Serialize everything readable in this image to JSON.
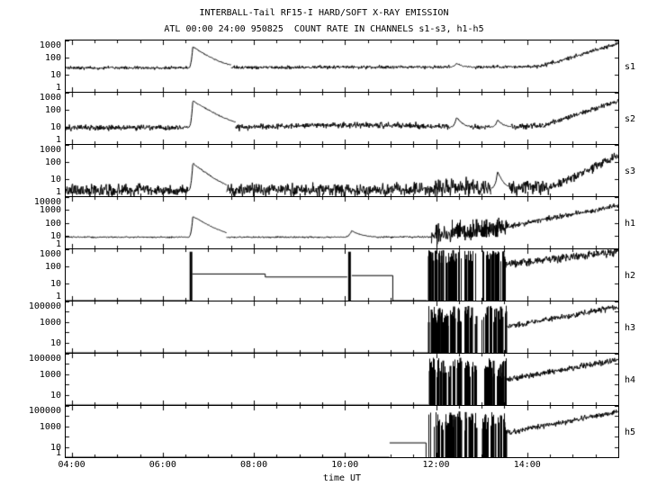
{
  "chart_data": {
    "type": "line",
    "title": "INTERBALL-Tail RF15-I HARD/SOFT X-RAY EMISSION",
    "subtitle": "ATL 00:00 24:00 950825  COUNT RATE IN CHANNELS s1-s3, h1-h5",
    "xlabel": "time UT",
    "line_color": "#000000",
    "background": "#ffffff",
    "xlim": [
      3.87,
      16.0
    ],
    "xminor_step": 0.5,
    "xticks": [
      {
        "v": 4,
        "label": "04:00"
      },
      {
        "v": 6,
        "label": "06:00"
      },
      {
        "v": 8,
        "label": "08:00"
      },
      {
        "v": 10,
        "label": "10:00"
      },
      {
        "v": 12,
        "label": "12:00"
      },
      {
        "v": 14,
        "label": "14:00"
      }
    ],
    "panels": [
      {
        "id": "s1",
        "label": "s1",
        "ylog": [
          0,
          3
        ],
        "yticks": [
          {
            "v": 1000,
            "label": "1000"
          },
          {
            "v": 100,
            "label": "100"
          },
          {
            "v": 10,
            "label": "10"
          },
          {
            "v": 1,
            "label": "1"
          }
        ],
        "segments": [
          {
            "type": "noisy",
            "t": [
              3.87,
              6.55
            ],
            "v": [
              25,
              25
            ],
            "jitter": 0.07
          },
          {
            "type": "flare",
            "t": [
              6.55,
              6.66,
              7.5
            ],
            "v": [
              25,
              430
            ]
          },
          {
            "type": "noisy",
            "t": [
              7.5,
              12.3
            ],
            "v": [
              26,
              28
            ],
            "jitter": 0.07
          },
          {
            "type": "flare",
            "t": [
              12.3,
              12.45,
              12.8
            ],
            "v": [
              28,
              48
            ]
          },
          {
            "type": "noisy",
            "t": [
              12.8,
              14.3
            ],
            "v": [
              28,
              30
            ],
            "jitter": 0.07
          },
          {
            "type": "noisy",
            "t": [
              14.3,
              16.0
            ],
            "v": [
              32,
              650
            ],
            "jitter": 0.08
          }
        ]
      },
      {
        "id": "s2",
        "label": "s2",
        "ylog": [
          0,
          3
        ],
        "yticks": [
          {
            "v": 1000,
            "label": "1000"
          },
          {
            "v": 100,
            "label": "100"
          },
          {
            "v": 10,
            "label": "10"
          },
          {
            "v": 1,
            "label": "1"
          }
        ],
        "segments": [
          {
            "type": "noisy",
            "t": [
              3.87,
              6.55
            ],
            "v": [
              9,
              9
            ],
            "jitter": 0.12
          },
          {
            "type": "flare",
            "t": [
              6.55,
              6.66,
              7.6
            ],
            "v": [
              9,
              330
            ]
          },
          {
            "type": "noisy",
            "t": [
              7.6,
              9.2
            ],
            "v": [
              9,
              12
            ],
            "jitter": 0.12
          },
          {
            "type": "noisy",
            "t": [
              9.2,
              11.6
            ],
            "v": [
              13,
              12
            ],
            "jitter": 0.12
          },
          {
            "type": "noisy",
            "t": [
              11.6,
              12.3
            ],
            "v": [
              10,
              10
            ],
            "jitter": 0.12
          },
          {
            "type": "flare",
            "t": [
              12.3,
              12.45,
              12.75
            ],
            "v": [
              10,
              38
            ]
          },
          {
            "type": "noisy",
            "t": [
              12.75,
              13.2
            ],
            "v": [
              10,
              10
            ],
            "jitter": 0.12
          },
          {
            "type": "flare",
            "t": [
              13.2,
              13.35,
              13.65
            ],
            "v": [
              10,
              26
            ]
          },
          {
            "type": "noisy",
            "t": [
              13.65,
              14.35
            ],
            "v": [
              10,
              12
            ],
            "jitter": 0.12
          },
          {
            "type": "noisy",
            "t": [
              14.35,
              16.0
            ],
            "v": [
              12,
              330
            ],
            "jitter": 0.1
          }
        ]
      },
      {
        "id": "s3",
        "label": "s3",
        "ylog": [
          0,
          3
        ],
        "yticks": [
          {
            "v": 1000,
            "label": "1000"
          },
          {
            "v": 100,
            "label": "100"
          },
          {
            "v": 10,
            "label": "10"
          },
          {
            "v": 1,
            "label": "1"
          }
        ],
        "segments": [
          {
            "type": "noisy",
            "t": [
              3.87,
              6.55
            ],
            "v": [
              2.2,
              2.2
            ],
            "jitter": 0.26
          },
          {
            "type": "flare",
            "t": [
              6.55,
              6.66,
              7.4
            ],
            "v": [
              2.2,
              85
            ]
          },
          {
            "type": "noisy",
            "t": [
              7.4,
              11.9
            ],
            "v": [
              2.2,
              2.5
            ],
            "jitter": 0.26
          },
          {
            "type": "noisy",
            "t": [
              11.9,
              13.2
            ],
            "v": [
              3,
              3.5
            ],
            "jitter": 0.38
          },
          {
            "type": "flare",
            "t": [
              13.2,
              13.35,
              13.6
            ],
            "v": [
              3,
              26
            ]
          },
          {
            "type": "noisy",
            "t": [
              13.6,
              14.6
            ],
            "v": [
              3,
              4
            ],
            "jitter": 0.3
          },
          {
            "type": "noisy",
            "t": [
              14.6,
              16.0
            ],
            "v": [
              4.5,
              230
            ],
            "jitter": 0.2
          }
        ]
      },
      {
        "id": "h1",
        "label": "h1",
        "ylog": [
          0,
          4
        ],
        "yticks": [
          {
            "v": 10000,
            "label": "10000"
          },
          {
            "v": 1000,
            "label": "1000"
          },
          {
            "v": 100,
            "label": "100"
          },
          {
            "v": 10,
            "label": "10"
          },
          {
            "v": 1,
            "label": "1"
          }
        ],
        "segments": [
          {
            "type": "noisy",
            "t": [
              3.87,
              6.55
            ],
            "v": [
              7.5,
              7.5
            ],
            "jitter": 0.04
          },
          {
            "type": "flare",
            "t": [
              6.55,
              6.66,
              7.4
            ],
            "v": [
              7.5,
              310
            ]
          },
          {
            "type": "noisy",
            "t": [
              7.4,
              9.95
            ],
            "v": [
              7.5,
              7.5
            ],
            "jitter": 0.04
          },
          {
            "type": "flare",
            "t": [
              9.95,
              10.15,
              10.7
            ],
            "v": [
              7.5,
              23
            ]
          },
          {
            "type": "noisy",
            "t": [
              10.7,
              11.9
            ],
            "v": [
              7.5,
              8
            ],
            "jitter": 0.05
          },
          {
            "type": "noisy",
            "t": [
              11.9,
              13.6
            ],
            "v": [
              12,
              45
            ],
            "jitter": 0.5
          },
          {
            "type": "bursts",
            "t": [
              12.3,
              13.4
            ],
            "base": 8,
            "range": [
              30,
              200
            ],
            "n": 22
          },
          {
            "type": "noisy",
            "t": [
              13.6,
              16.0
            ],
            "v": [
              55,
              2200
            ],
            "jitter": 0.15
          }
        ]
      },
      {
        "id": "h2",
        "label": "h2",
        "ylog": [
          0,
          3
        ],
        "yticks": [
          {
            "v": 1000,
            "label": "1000"
          },
          {
            "v": 100,
            "label": "100"
          },
          {
            "v": 10,
            "label": "10"
          },
          {
            "v": 1,
            "label": "1"
          }
        ],
        "segments": [
          {
            "type": "line",
            "points": [
              [
                3.87,
                1
              ],
              [
                6.58,
                1
              ]
            ]
          },
          {
            "type": "spike",
            "t": 6.62,
            "v": 720,
            "w": 3
          },
          {
            "type": "line",
            "points": [
              [
                6.65,
                36
              ],
              [
                8.25,
                36
              ],
              [
                8.25,
                24
              ],
              [
                10.05,
                24
              ]
            ]
          },
          {
            "type": "spike",
            "t": 10.1,
            "v": 720,
            "w": 3
          },
          {
            "type": "line",
            "points": [
              [
                10.15,
                29
              ],
              [
                11.05,
                29
              ],
              [
                11.05,
                1
              ],
              [
                11.8,
                1
              ]
            ]
          },
          {
            "type": "bursts",
            "t": [
              11.8,
              12.55
            ],
            "base": 1,
            "range": [
              150,
              900
            ],
            "n": 70
          },
          {
            "type": "bursts",
            "t": [
              12.62,
              12.88
            ],
            "base": 1,
            "range": [
              150,
              900
            ],
            "n": 22
          },
          {
            "type": "bursts",
            "t": [
              13.0,
              13.52
            ],
            "base": 1,
            "range": [
              150,
              900
            ],
            "n": 45
          },
          {
            "type": "noisy",
            "t": [
              13.52,
              16.0
            ],
            "v": [
              130,
              700
            ],
            "jitter": 0.18
          }
        ]
      },
      {
        "id": "h3",
        "label": "h3",
        "ylog": [
          0,
          5
        ],
        "yticks": [
          {
            "v": 100000,
            "label": "100000"
          },
          {
            "v": 1000,
            "label": "1000"
          },
          {
            "v": 10,
            "label": "10"
          }
        ],
        "segments": [
          {
            "type": "line",
            "points": [
              [
                3.87,
                1
              ],
              [
                11.83,
                1
              ]
            ]
          },
          {
            "type": "bursts",
            "t": [
              11.83,
              12.55
            ],
            "base": 1,
            "range": [
              400,
              40000
            ],
            "n": 60
          },
          {
            "type": "bursts",
            "t": [
              12.62,
              12.88
            ],
            "base": 1,
            "range": [
              400,
              40000
            ],
            "n": 20
          },
          {
            "type": "bursts",
            "t": [
              13.0,
              13.55
            ],
            "base": 1,
            "range": [
              400,
              40000
            ],
            "n": 42
          },
          {
            "type": "noisy",
            "t": [
              13.55,
              16.0
            ],
            "v": [
              350,
              30000
            ],
            "jitter": 0.2
          }
        ]
      },
      {
        "id": "h4",
        "label": "h4",
        "ylog": [
          0,
          5
        ],
        "yticks": [
          {
            "v": 100000,
            "label": "100000"
          },
          {
            "v": 1000,
            "label": "1000"
          },
          {
            "v": 10,
            "label": "10"
          }
        ],
        "segments": [
          {
            "type": "line",
            "points": [
              [
                3.87,
                1
              ],
              [
                11.83,
                1
              ]
            ]
          },
          {
            "type": "bursts",
            "t": [
              11.83,
              12.55
            ],
            "base": 1,
            "range": [
              400,
              40000
            ],
            "n": 58
          },
          {
            "type": "bursts",
            "t": [
              12.62,
              12.88
            ],
            "base": 1,
            "range": [
              400,
              40000
            ],
            "n": 20
          },
          {
            "type": "bursts",
            "t": [
              13.0,
              13.55
            ],
            "base": 1,
            "range": [
              400,
              40000
            ],
            "n": 40
          },
          {
            "type": "noisy",
            "t": [
              13.55,
              16.0
            ],
            "v": [
              300,
              26000
            ],
            "jitter": 0.2
          }
        ]
      },
      {
        "id": "h5",
        "label": "h5",
        "ylog": [
          0,
          5
        ],
        "yticks": [
          {
            "v": 100000,
            "label": "100000"
          },
          {
            "v": 1000,
            "label": "1000"
          },
          {
            "v": 10,
            "label": "10"
          },
          {
            "v": 1,
            "label": "1"
          }
        ],
        "segments": [
          {
            "type": "line",
            "points": [
              [
                3.87,
                1
              ],
              [
                10.98,
                1
              ]
            ]
          },
          {
            "type": "line",
            "points": [
              [
                10.98,
                25
              ],
              [
                11.78,
                25
              ],
              [
                11.78,
                1
              ]
            ]
          },
          {
            "type": "bursts",
            "t": [
              11.8,
              12.55
            ],
            "base": 1,
            "range": [
              300,
              30000
            ],
            "n": 55
          },
          {
            "type": "bursts",
            "t": [
              12.62,
              12.88
            ],
            "base": 1,
            "range": [
              300,
              30000
            ],
            "n": 18
          },
          {
            "type": "bursts",
            "t": [
              13.0,
              13.55
            ],
            "base": 1,
            "range": [
              300,
              30000
            ],
            "n": 40
          },
          {
            "type": "noisy",
            "t": [
              13.55,
              16.0
            ],
            "v": [
              250,
              26000
            ],
            "jitter": 0.2
          }
        ]
      }
    ]
  }
}
